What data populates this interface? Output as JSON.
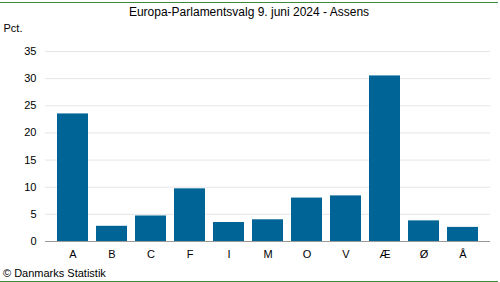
{
  "chart_data": {
    "type": "bar",
    "title": "Europa-Parlamentsvalg 9. juni 2024 - Assens",
    "y_label": "Pct.",
    "caption": "© Danmarks Statistik",
    "categories": [
      "A",
      "B",
      "C",
      "F",
      "I",
      "M",
      "O",
      "V",
      "Æ",
      "Ø",
      "Å"
    ],
    "values": [
      23.5,
      2.8,
      4.7,
      9.7,
      3.5,
      4.0,
      8.0,
      8.4,
      30.5,
      3.8,
      2.6
    ],
    "color": "#006496",
    "ylim": [
      0,
      35
    ],
    "yticks": [
      0,
      5,
      10,
      15,
      20,
      25,
      30,
      35
    ],
    "grid": true
  }
}
